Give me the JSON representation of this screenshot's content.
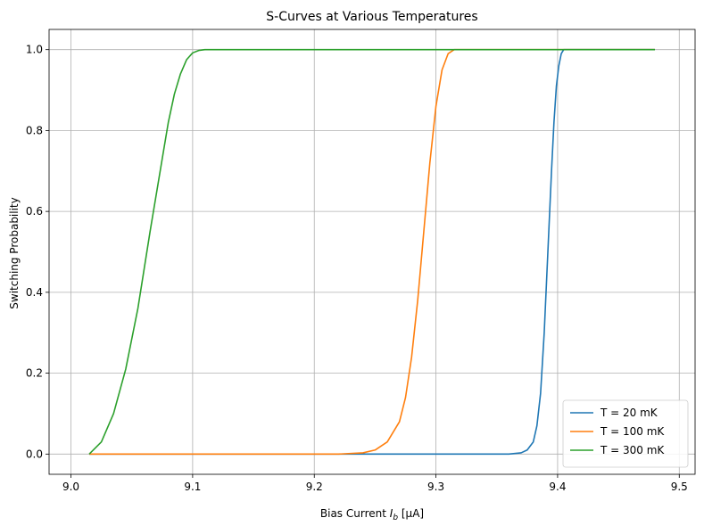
{
  "chart_data": {
    "type": "line",
    "title": "S-Curves at Various Temperatures",
    "xlabel": "Bias Current",
    "xlabel_symbol": "I",
    "xlabel_subscript": "b",
    "xlabel_unit": "[μA]",
    "ylabel": "Switching Probability",
    "xlim": [
      8.982,
      9.513
    ],
    "ylim": [
      -0.05,
      1.05
    ],
    "xticks": [
      9.0,
      9.1,
      9.2,
      9.3,
      9.4,
      9.5
    ],
    "xtick_labels": [
      "9.0",
      "9.1",
      "9.2",
      "9.3",
      "9.4",
      "9.5"
    ],
    "yticks": [
      0.0,
      0.2,
      0.4,
      0.6,
      0.8,
      1.0
    ],
    "ytick_labels": [
      "0.0",
      "0.2",
      "0.4",
      "0.6",
      "0.8",
      "1.0"
    ],
    "grid": true,
    "legend_position": "bottom-right",
    "series": [
      {
        "name": "T = 20 mK",
        "color": "#1f77b4",
        "x": [
          9.015,
          9.36,
          9.37,
          9.375,
          9.38,
          9.383,
          9.386,
          9.389,
          9.392,
          9.395,
          9.397,
          9.399,
          9.401,
          9.403,
          9.405,
          9.41,
          9.48
        ],
        "y": [
          0.0,
          0.0,
          0.003,
          0.01,
          0.03,
          0.07,
          0.15,
          0.3,
          0.5,
          0.7,
          0.82,
          0.91,
          0.96,
          0.99,
          1.0,
          1.0,
          1.0
        ]
      },
      {
        "name": "T = 100 mK",
        "color": "#ff7f0e",
        "x": [
          9.015,
          9.22,
          9.24,
          9.25,
          9.26,
          9.27,
          9.275,
          9.28,
          9.285,
          9.29,
          9.295,
          9.3,
          9.305,
          9.31,
          9.315,
          9.32,
          9.48
        ],
        "y": [
          0.0,
          0.0,
          0.003,
          0.01,
          0.03,
          0.08,
          0.14,
          0.24,
          0.38,
          0.55,
          0.72,
          0.86,
          0.95,
          0.99,
          1.0,
          1.0,
          1.0
        ]
      },
      {
        "name": "T = 300 mK",
        "color": "#2ca02c",
        "x": [
          9.015,
          9.025,
          9.035,
          9.045,
          9.055,
          9.065,
          9.07,
          9.075,
          9.08,
          9.085,
          9.09,
          9.095,
          9.1,
          9.105,
          9.11,
          9.12,
          9.48
        ],
        "y": [
          0.0,
          0.03,
          0.1,
          0.21,
          0.36,
          0.55,
          0.64,
          0.73,
          0.82,
          0.89,
          0.94,
          0.975,
          0.992,
          0.998,
          1.0,
          1.0,
          1.0
        ]
      }
    ]
  }
}
